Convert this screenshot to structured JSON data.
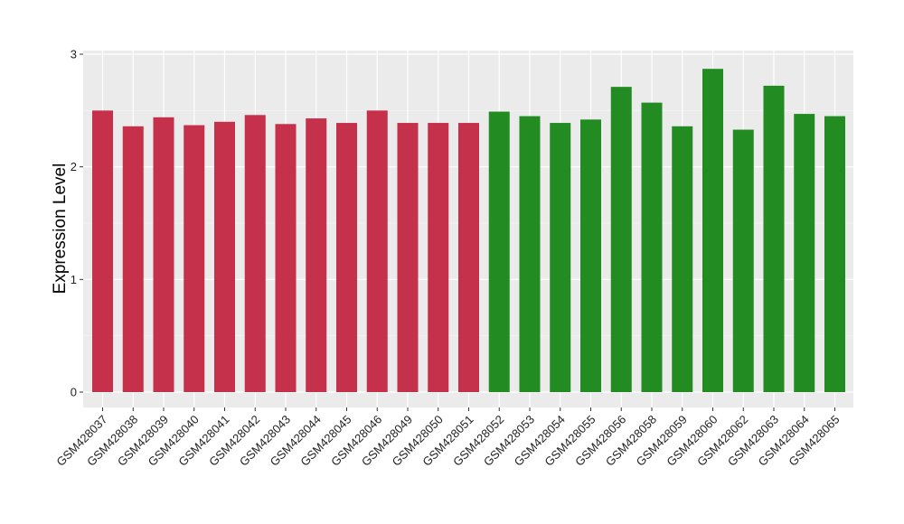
{
  "chart_data": {
    "type": "bar",
    "title": "",
    "xlabel": "",
    "ylabel": "Expression Level",
    "ylim": [
      0,
      3
    ],
    "yticks": [
      0,
      1,
      2,
      3
    ],
    "grid": true,
    "legend": "none",
    "panel_background": "#ebebeb",
    "colors": {
      "group1": "#c5314a",
      "group2": "#228b22"
    },
    "categories": [
      "GSM428037",
      "GSM428038",
      "GSM428039",
      "GSM428040",
      "GSM428041",
      "GSM428042",
      "GSM428043",
      "GSM428044",
      "GSM428045",
      "GSM428046",
      "GSM428049",
      "GSM428050",
      "GSM428051",
      "GSM428052",
      "GSM428053",
      "GSM428054",
      "GSM428055",
      "GSM428056",
      "GSM428058",
      "GSM428059",
      "GSM428060",
      "GSM428062",
      "GSM428063",
      "GSM428064",
      "GSM428065"
    ],
    "values": [
      2.5,
      2.36,
      2.44,
      2.37,
      2.4,
      2.46,
      2.38,
      2.43,
      2.39,
      2.5,
      2.39,
      2.39,
      2.39,
      2.49,
      2.45,
      2.39,
      2.42,
      2.71,
      2.57,
      2.36,
      2.87,
      2.33,
      2.72,
      2.47,
      2.45
    ],
    "groups": [
      "group1",
      "group1",
      "group1",
      "group1",
      "group1",
      "group1",
      "group1",
      "group1",
      "group1",
      "group1",
      "group1",
      "group1",
      "group1",
      "group2",
      "group2",
      "group2",
      "group2",
      "group2",
      "group2",
      "group2",
      "group2",
      "group2",
      "group2",
      "group2",
      "group2"
    ]
  }
}
